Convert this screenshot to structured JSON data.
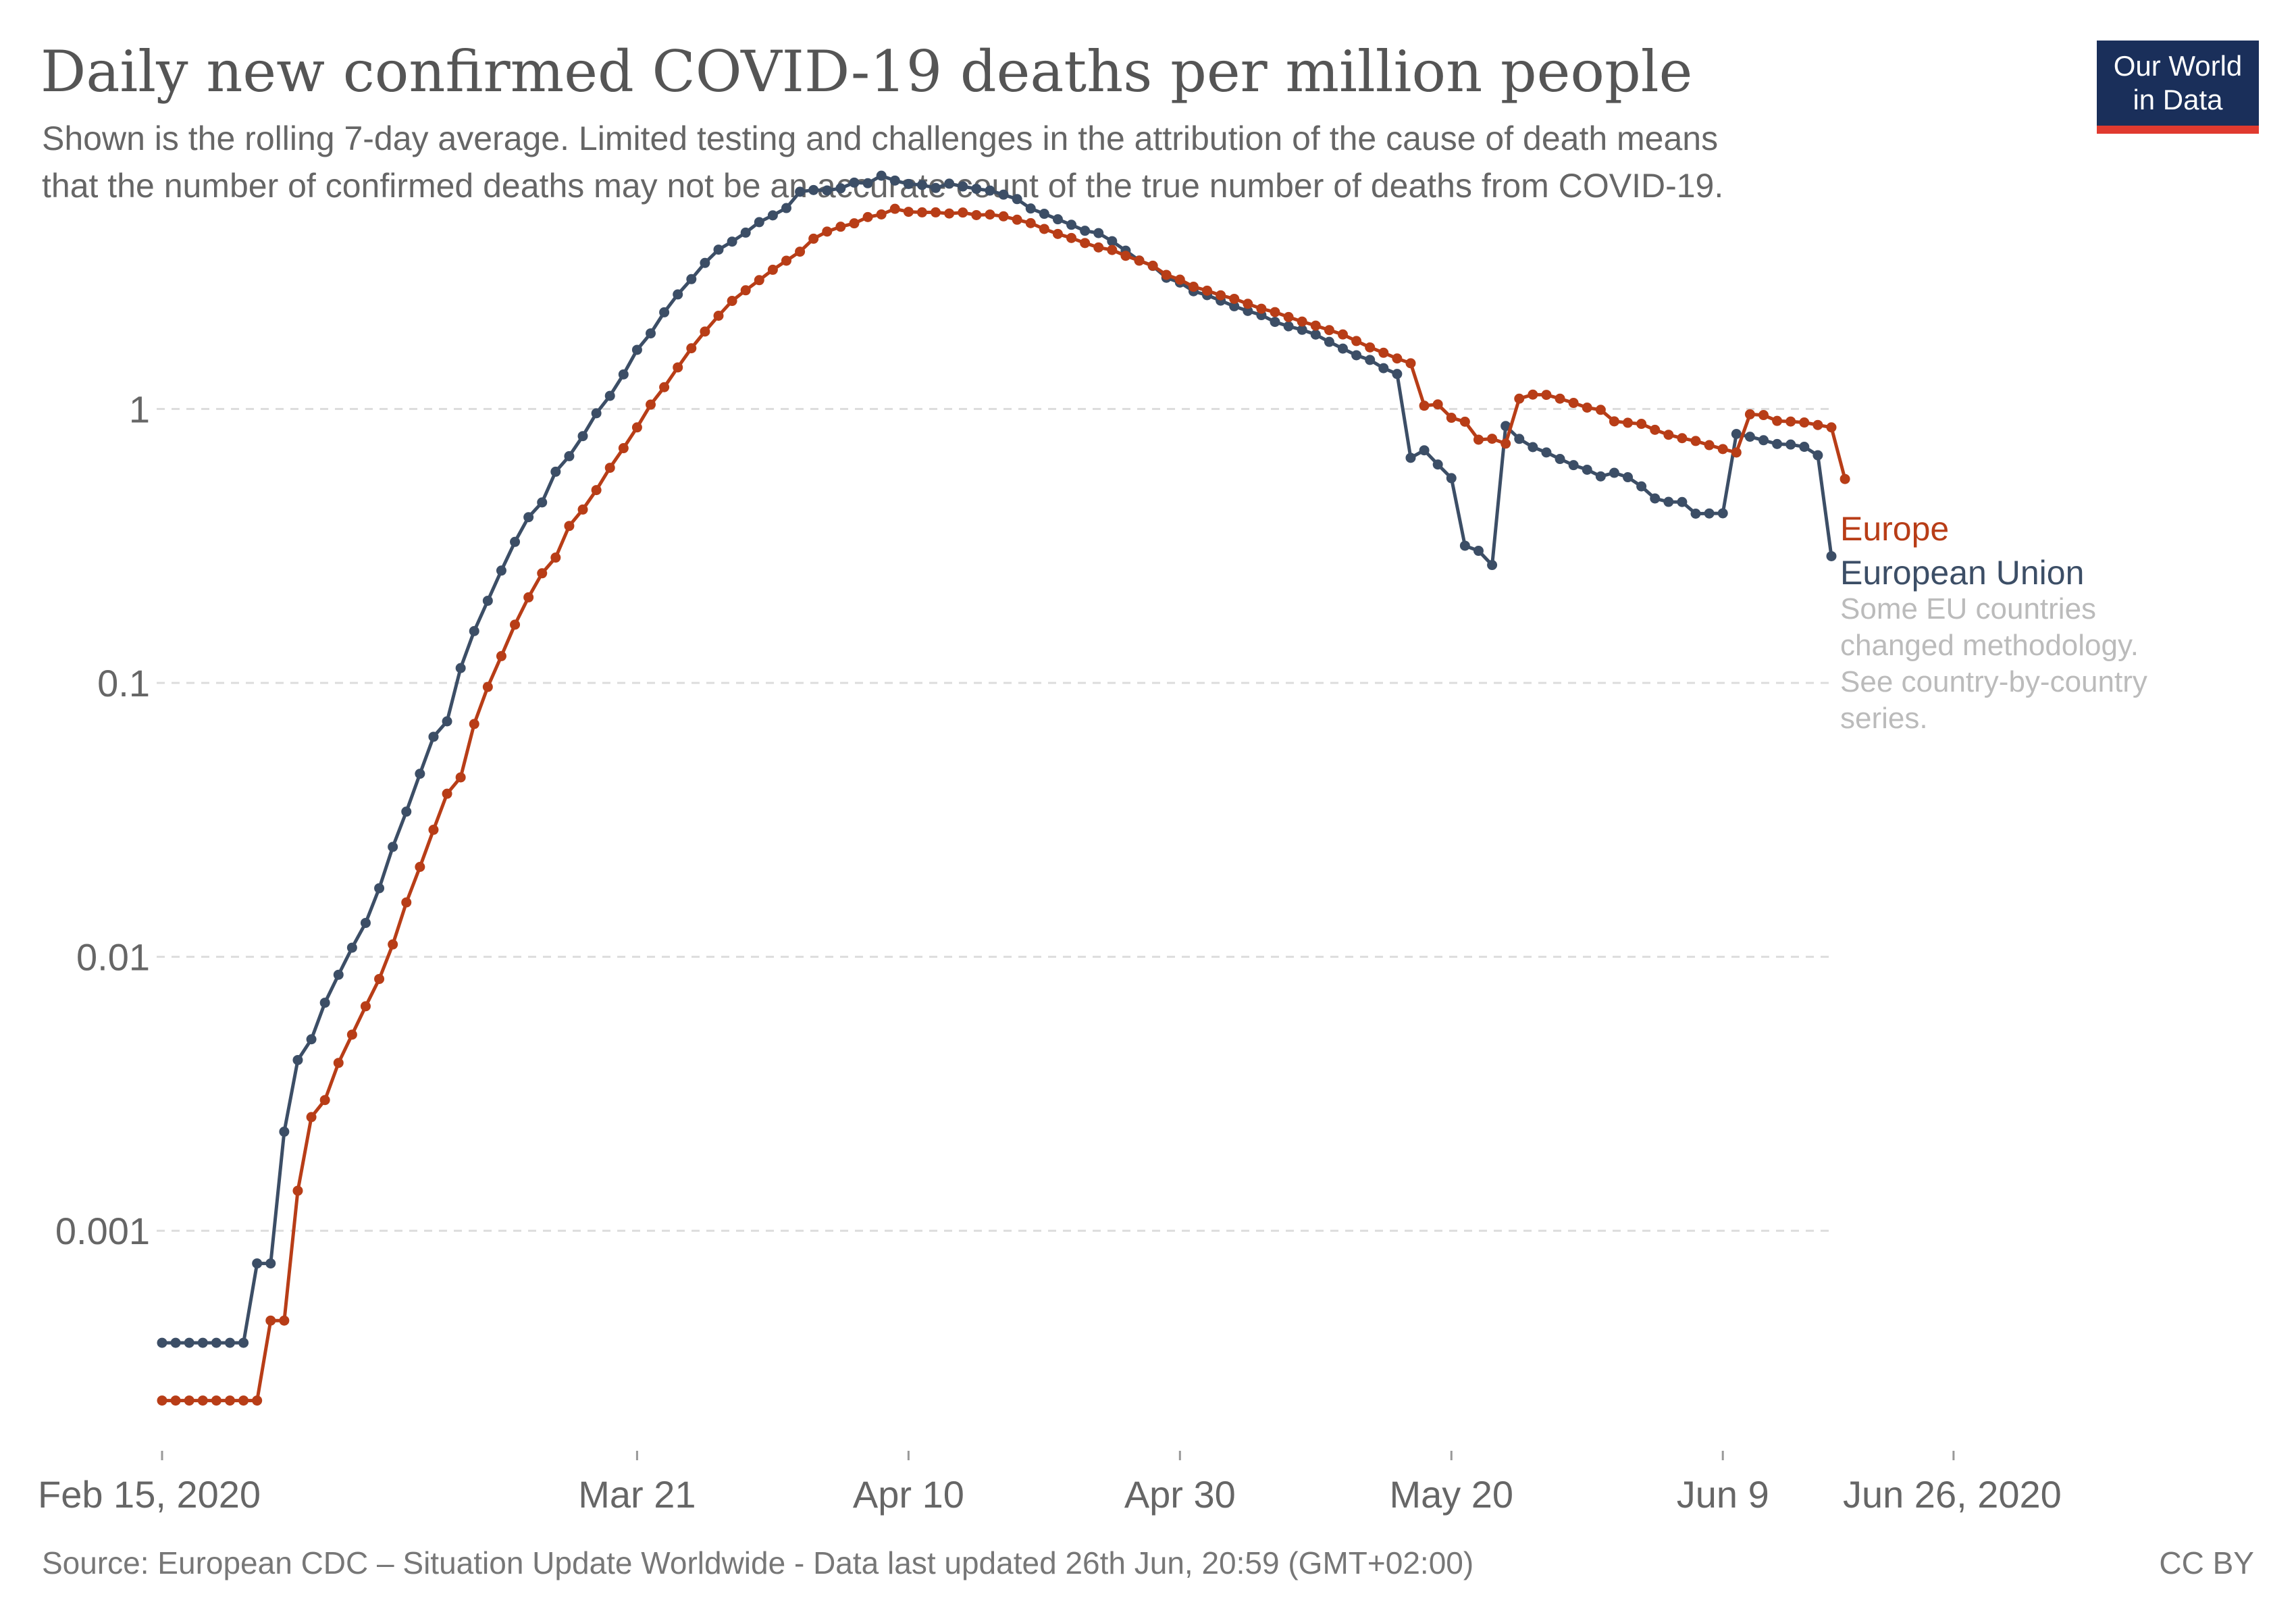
{
  "header": {
    "title": "Daily new confirmed COVID-19 deaths per million people",
    "subtitle_line1": "Shown is the rolling 7-day average. Limited testing and challenges in the attribution of the cause of death means",
    "subtitle_line2": "that the number of confirmed deaths may not be an accurate count of the true number of deaths from COVID-19."
  },
  "logo": {
    "line1": "Our World",
    "line2": "in Data",
    "bg_color": "#1a2f5a",
    "accent_color": "#e03a2f"
  },
  "footer": {
    "source": "Source: European CDC – Situation Update Worldwide - Data last updated 26th Jun, 20:59 (GMT+02:00)",
    "license": "CC BY"
  },
  "legend_note": [
    "Some EU countries",
    "changed methodology.",
    "See country-by-country",
    "series."
  ],
  "chart_data": {
    "type": "line",
    "title": "Daily new confirmed COVID-19 deaths per million people",
    "xlabel": "",
    "ylabel": "",
    "yscale": "log",
    "ylim": [
      0.00016,
      10
    ],
    "start_date": "2020-02-15",
    "end_date": "2020-06-26",
    "y_ticks": [
      {
        "value": 0.001,
        "label": "0.001"
      },
      {
        "value": 0.01,
        "label": "0.01"
      },
      {
        "value": 0.1,
        "label": "0.1"
      },
      {
        "value": 1,
        "label": "1"
      }
    ],
    "x_ticks": [
      {
        "day": 0,
        "label": "Feb 15, 2020"
      },
      {
        "day": 35,
        "label": "Mar 21"
      },
      {
        "day": 55,
        "label": "Apr 10"
      },
      {
        "day": 75,
        "label": "Apr 30"
      },
      {
        "day": 95,
        "label": "May 20"
      },
      {
        "day": 115,
        "label": "Jun 9"
      },
      {
        "day": 132,
        "label": "Jun 26, 2020"
      }
    ],
    "series": [
      {
        "name": "European Union",
        "color": "#3c4e66",
        "values": [
          0.00039,
          0.00039,
          0.00039,
          0.00039,
          0.00039,
          0.00039,
          0.00039,
          0.00076,
          0.00076,
          0.0023,
          0.0042,
          0.005,
          0.0068,
          0.0086,
          0.0108,
          0.0133,
          0.0178,
          0.0252,
          0.0339,
          0.0466,
          0.0636,
          0.0724,
          0.1133,
          0.1546,
          0.1995,
          0.2571,
          0.3273,
          0.4028,
          0.4561,
          0.5903,
          0.6725,
          0.7962,
          0.9648,
          1.1169,
          1.3375,
          1.6444,
          1.8884,
          2.2542,
          2.6197,
          2.9788,
          3.4141,
          3.8176,
          4.0844,
          4.4041,
          4.8101,
          5.0933,
          5.4151,
          6.2101,
          6.3023,
          6.2793,
          6.3939,
          6.7082,
          6.6714,
          7.1079,
          6.8218,
          6.6289,
          6.5743,
          6.4121,
          6.6473,
          6.4937,
          6.3648,
          6.2723,
          6.062,
          5.8385,
          5.3962,
          5.1593,
          4.9276,
          4.7049,
          4.4735,
          4.3881,
          4.0992,
          3.7853,
          3.4838,
          3.3304,
          3.0148,
          2.8948,
          2.6909,
          2.6042,
          2.4867,
          2.3722,
          2.2805,
          2.2018,
          2.0797,
          2.0042,
          1.946,
          1.8694,
          1.7585,
          1.6617,
          1.5713,
          1.5106,
          1.4097,
          1.3426,
          0.6634,
          0.7066,
          0.6271,
          0.5592,
          0.3169,
          0.3036,
          0.2694,
          0.867,
          0.778,
          0.7258,
          0.6941,
          0.6571,
          0.6239,
          0.6003,
          0.5675,
          0.5849,
          0.5637,
          0.5218,
          0.4715,
          0.4581,
          0.4576,
          0.4149,
          0.4156,
          0.4162,
          0.8108,
          0.792,
          0.7692,
          0.7451,
          0.7417,
          0.7277,
          0.6778,
          0.2902
        ]
      },
      {
        "name": "Europe",
        "color": "#b83d17",
        "values": [
          0.00024,
          0.00024,
          0.00024,
          0.00024,
          0.00024,
          0.00024,
          0.00024,
          0.00024,
          0.00047,
          0.00047,
          0.0014,
          0.0026,
          0.003,
          0.0041,
          0.0052,
          0.0066,
          0.0083,
          0.0111,
          0.0158,
          0.0213,
          0.0291,
          0.0394,
          0.0452,
          0.0708,
          0.0967,
          0.1253,
          0.1632,
          0.2053,
          0.2513,
          0.2868,
          0.3741,
          0.4295,
          0.5058,
          0.6101,
          0.7195,
          0.8567,
          1.0376,
          1.2013,
          1.4187,
          1.6662,
          1.9181,
          2.1898,
          2.4808,
          2.7124,
          2.9542,
          3.2234,
          3.4788,
          3.7534,
          4.1858,
          4.4436,
          4.629,
          4.7618,
          5.0201,
          5.1327,
          5.3802,
          5.2464,
          5.2222,
          5.2234,
          5.1734,
          5.2153,
          5.1031,
          5.1289,
          5.0519,
          4.9104,
          4.771,
          4.5429,
          4.3567,
          4.2114,
          4.0358,
          3.8888,
          3.8069,
          3.6251,
          3.4806,
          3.3358,
          3.0878,
          2.9664,
          2.7951,
          2.7043,
          2.6006,
          2.5247,
          2.4215,
          2.3234,
          2.2584,
          2.1664,
          2.0856,
          2.0158,
          1.9411,
          1.8713,
          1.7708,
          1.6786,
          1.6046,
          1.5291,
          1.4688,
          1.0283,
          1.0397,
          0.9289,
          0.8987,
          0.7727,
          0.7788,
          0.7476,
          1.0908,
          1.1286,
          1.1264,
          1.0911,
          1.0525,
          1.0117,
          0.993,
          0.9015,
          0.8909,
          0.8826,
          0.8395,
          0.8052,
          0.7825,
          0.7643,
          0.7381,
          0.7143,
          0.6938,
          0.9565,
          0.9502,
          0.9048,
          0.9,
          0.8928,
          0.8744,
          0.8569,
          0.5551
        ]
      }
    ]
  }
}
